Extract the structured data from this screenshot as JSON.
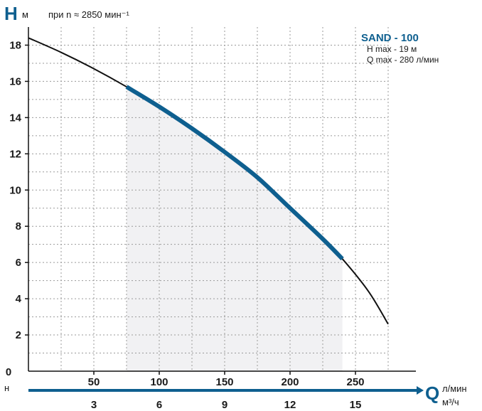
{
  "header": {
    "y_symbol": "H",
    "y_unit": "м",
    "condition": "при n ≈ 2850 мин⁻¹"
  },
  "legend": {
    "model": "SAND - 100",
    "hmax": "H max - 19 м",
    "qmax": "Q max - 280 л/мин"
  },
  "x_axis": {
    "symbol": "Q",
    "unit_primary": "л/мин",
    "unit_secondary": "м³/ч",
    "origin_label": "0",
    "corner_label": "н",
    "primary_ticks": [
      "50",
      "100",
      "150",
      "200",
      "250"
    ],
    "secondary_ticks": [
      "3",
      "6",
      "9",
      "12",
      "15"
    ]
  },
  "colors": {
    "curve": "#111111",
    "working_range": "#0e5f8f",
    "shade": "#f1f1f3",
    "grid": "#9a9a9a",
    "axis_accent": "#0e5f8f"
  },
  "chart_data": {
    "type": "line",
    "xlabel": "Q",
    "ylabel": "H",
    "xlim": [
      0,
      300
    ],
    "ylim": [
      0,
      19
    ],
    "y_ticks": [
      0,
      2,
      4,
      6,
      8,
      10,
      12,
      14,
      16,
      18
    ],
    "x_ticks": [
      50,
      100,
      150,
      200,
      250
    ],
    "x_ticks_m3h": [
      3,
      6,
      9,
      12,
      15
    ],
    "grid": true,
    "series": [
      {
        "x": [
          0,
          25,
          50,
          75,
          100,
          125,
          150,
          175,
          200,
          225,
          240,
          260,
          275
        ],
        "y": [
          18.4,
          17.6,
          16.7,
          15.7,
          14.6,
          13.4,
          12.1,
          10.7,
          9.0,
          7.3,
          6.2,
          4.4,
          2.6
        ]
      }
    ],
    "working_range": {
      "x": [
        75,
        100,
        125,
        150,
        175,
        200,
        225,
        240
      ],
      "y": [
        15.7,
        14.6,
        13.4,
        12.1,
        10.7,
        9.0,
        7.3,
        6.2
      ]
    },
    "shaded_x_range": [
      75,
      240
    ]
  }
}
